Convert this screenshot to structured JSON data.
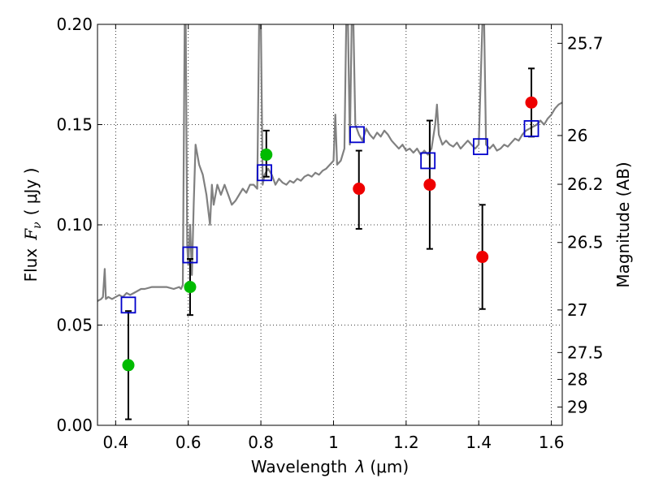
{
  "chart_data": {
    "type": "scatter",
    "xlabel_prefix": "Wavelength",
    "xlabel_symbol": "λ",
    "xlabel_unit": "(μm)",
    "ylabel_prefix": "Flux",
    "ylabel_symbol": "F",
    "ylabel_symbol_sub": "ν",
    "ylabel_unit": "( μJy )",
    "y2label": "Magnitude (AB)",
    "xlim": [
      0.35,
      1.63
    ],
    "ylim": [
      0.0,
      0.2
    ],
    "grid": true,
    "x_ticks": [
      {
        "value": 0.4,
        "label": "0.4"
      },
      {
        "value": 0.6,
        "label": "0.6"
      },
      {
        "value": 0.8,
        "label": "0.8"
      },
      {
        "value": 1.0,
        "label": "1"
      },
      {
        "value": 1.2,
        "label": "1.2"
      },
      {
        "value": 1.4,
        "label": "1.4"
      },
      {
        "value": 1.6,
        "label": "1.6"
      }
    ],
    "y_ticks": [
      {
        "value": 0.0,
        "label": "0.00"
      },
      {
        "value": 0.05,
        "label": "0.05"
      },
      {
        "value": 0.1,
        "label": "0.10"
      },
      {
        "value": 0.15,
        "label": "0.15"
      },
      {
        "value": 0.2,
        "label": "0.20"
      }
    ],
    "y2_ticks": [
      {
        "value": 25.7,
        "label": "25.7"
      },
      {
        "value": 26.0,
        "label": "26"
      },
      {
        "value": 26.2,
        "label": "26.2"
      },
      {
        "value": 26.5,
        "label": "26.5"
      },
      {
        "value": 27.0,
        "label": "27"
      },
      {
        "value": 27.5,
        "label": "27.5"
      },
      {
        "value": 28.0,
        "label": "28"
      },
      {
        "value": 29.0,
        "label": "29"
      }
    ],
    "spectrum": {
      "color": "#808080",
      "points": [
        [
          0.35,
          0.062
        ],
        [
          0.36,
          0.063
        ],
        [
          0.365,
          0.064
        ],
        [
          0.37,
          0.078
        ],
        [
          0.373,
          0.063
        ],
        [
          0.38,
          0.064
        ],
        [
          0.39,
          0.063
        ],
        [
          0.4,
          0.064
        ],
        [
          0.41,
          0.065
        ],
        [
          0.42,
          0.064
        ],
        [
          0.43,
          0.066
        ],
        [
          0.44,
          0.065
        ],
        [
          0.45,
          0.066
        ],
        [
          0.46,
          0.067
        ],
        [
          0.47,
          0.068
        ],
        [
          0.48,
          0.068
        ],
        [
          0.5,
          0.069
        ],
        [
          0.52,
          0.069
        ],
        [
          0.54,
          0.069
        ],
        [
          0.56,
          0.068
        ],
        [
          0.575,
          0.069
        ],
        [
          0.58,
          0.068
        ],
        [
          0.585,
          0.07
        ],
        [
          0.59,
          0.2
        ],
        [
          0.593,
          0.2
        ],
        [
          0.597,
          0.09
        ],
        [
          0.6,
          0.08
        ],
        [
          0.605,
          0.1
        ],
        [
          0.61,
          0.075
        ],
        [
          0.615,
          0.11
        ],
        [
          0.62,
          0.14
        ],
        [
          0.63,
          0.13
        ],
        [
          0.64,
          0.125
        ],
        [
          0.65,
          0.115
        ],
        [
          0.66,
          0.1
        ],
        [
          0.665,
          0.12
        ],
        [
          0.67,
          0.11
        ],
        [
          0.68,
          0.12
        ],
        [
          0.69,
          0.115
        ],
        [
          0.7,
          0.12
        ],
        [
          0.71,
          0.115
        ],
        [
          0.72,
          0.11
        ],
        [
          0.73,
          0.112
        ],
        [
          0.74,
          0.115
        ],
        [
          0.75,
          0.118
        ],
        [
          0.76,
          0.116
        ],
        [
          0.77,
          0.12
        ],
        [
          0.78,
          0.12
        ],
        [
          0.79,
          0.118
        ],
        [
          0.795,
          0.2
        ],
        [
          0.8,
          0.2
        ],
        [
          0.805,
          0.12
        ],
        [
          0.81,
          0.125
        ],
        [
          0.82,
          0.128
        ],
        [
          0.83,
          0.125
        ],
        [
          0.84,
          0.12
        ],
        [
          0.85,
          0.123
        ],
        [
          0.86,
          0.121
        ],
        [
          0.87,
          0.12
        ],
        [
          0.88,
          0.122
        ],
        [
          0.89,
          0.121
        ],
        [
          0.9,
          0.123
        ],
        [
          0.91,
          0.122
        ],
        [
          0.92,
          0.124
        ],
        [
          0.93,
          0.125
        ],
        [
          0.94,
          0.124
        ],
        [
          0.95,
          0.126
        ],
        [
          0.96,
          0.125
        ],
        [
          0.97,
          0.127
        ],
        [
          0.98,
          0.128
        ],
        [
          0.99,
          0.13
        ],
        [
          1.0,
          0.132
        ],
        [
          1.005,
          0.155
        ],
        [
          1.01,
          0.13
        ],
        [
          1.02,
          0.132
        ],
        [
          1.03,
          0.138
        ],
        [
          1.035,
          0.2
        ],
        [
          1.04,
          0.2
        ],
        [
          1.045,
          0.14
        ],
        [
          1.05,
          0.2
        ],
        [
          1.055,
          0.2
        ],
        [
          1.06,
          0.15
        ],
        [
          1.07,
          0.145
        ],
        [
          1.08,
          0.142
        ],
        [
          1.09,
          0.148
        ],
        [
          1.1,
          0.145
        ],
        [
          1.11,
          0.143
        ],
        [
          1.12,
          0.146
        ],
        [
          1.13,
          0.144
        ],
        [
          1.14,
          0.147
        ],
        [
          1.15,
          0.145
        ],
        [
          1.16,
          0.142
        ],
        [
          1.17,
          0.14
        ],
        [
          1.18,
          0.138
        ],
        [
          1.19,
          0.14
        ],
        [
          1.2,
          0.137
        ],
        [
          1.21,
          0.138
        ],
        [
          1.22,
          0.136
        ],
        [
          1.23,
          0.138
        ],
        [
          1.24,
          0.135
        ],
        [
          1.25,
          0.137
        ],
        [
          1.26,
          0.135
        ],
        [
          1.27,
          0.138
        ],
        [
          1.28,
          0.15
        ],
        [
          1.285,
          0.16
        ],
        [
          1.29,
          0.145
        ],
        [
          1.3,
          0.14
        ],
        [
          1.31,
          0.142
        ],
        [
          1.32,
          0.14
        ],
        [
          1.33,
          0.139
        ],
        [
          1.34,
          0.141
        ],
        [
          1.35,
          0.138
        ],
        [
          1.36,
          0.14
        ],
        [
          1.37,
          0.142
        ],
        [
          1.38,
          0.14
        ],
        [
          1.39,
          0.138
        ],
        [
          1.4,
          0.14
        ],
        [
          1.41,
          0.2
        ],
        [
          1.415,
          0.2
        ],
        [
          1.42,
          0.14
        ],
        [
          1.43,
          0.138
        ],
        [
          1.44,
          0.14
        ],
        [
          1.45,
          0.137
        ],
        [
          1.46,
          0.138
        ],
        [
          1.47,
          0.14
        ],
        [
          1.48,
          0.139
        ],
        [
          1.49,
          0.141
        ],
        [
          1.5,
          0.143
        ],
        [
          1.51,
          0.142
        ],
        [
          1.52,
          0.145
        ],
        [
          1.53,
          0.147
        ],
        [
          1.54,
          0.148
        ],
        [
          1.55,
          0.149
        ],
        [
          1.56,
          0.15
        ],
        [
          1.57,
          0.152
        ],
        [
          1.58,
          0.15
        ],
        [
          1.59,
          0.153
        ],
        [
          1.6,
          0.155
        ],
        [
          1.61,
          0.158
        ],
        [
          1.62,
          0.16
        ],
        [
          1.63,
          0.161
        ]
      ]
    },
    "model_points": {
      "color": "#0000cc",
      "marker": "open-square",
      "points": [
        [
          0.435,
          0.06
        ],
        [
          0.605,
          0.085
        ],
        [
          0.81,
          0.126
        ],
        [
          1.065,
          0.145
        ],
        [
          1.26,
          0.132
        ],
        [
          1.405,
          0.139
        ],
        [
          1.545,
          0.148
        ]
      ]
    },
    "green_points": {
      "color": "#00bb00",
      "marker": "filled-circle",
      "points": [
        {
          "x": 0.435,
          "y": 0.03,
          "yerr_low": 0.027,
          "yerr_high": 0.027
        },
        {
          "x": 0.605,
          "y": 0.069,
          "yerr_low": 0.014,
          "yerr_high": 0.014
        },
        {
          "x": 0.815,
          "y": 0.135,
          "yerr_low": 0.011,
          "yerr_high": 0.012
        }
      ]
    },
    "red_points": {
      "color": "#ee0000",
      "marker": "filled-circle",
      "points": [
        {
          "x": 1.07,
          "y": 0.118,
          "yerr_low": 0.02,
          "yerr_high": 0.019
        },
        {
          "x": 1.265,
          "y": 0.12,
          "yerr_low": 0.032,
          "yerr_high": 0.032
        },
        {
          "x": 1.41,
          "y": 0.084,
          "yerr_low": 0.026,
          "yerr_high": 0.026
        },
        {
          "x": 1.545,
          "y": 0.161,
          "yerr_low": 0.017,
          "yerr_high": 0.017
        }
      ]
    }
  }
}
